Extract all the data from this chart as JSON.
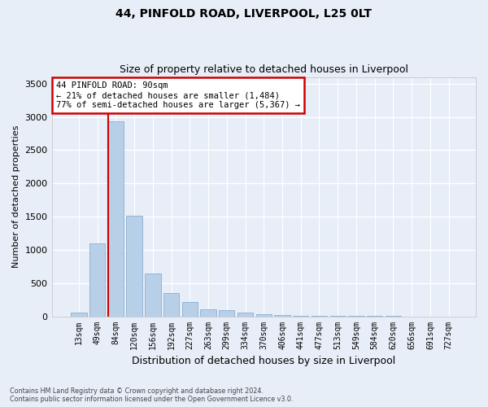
{
  "title1": "44, PINFOLD ROAD, LIVERPOOL, L25 0LT",
  "title2": "Size of property relative to detached houses in Liverpool",
  "xlabel": "Distribution of detached houses by size in Liverpool",
  "ylabel": "Number of detached properties",
  "categories": [
    "13sqm",
    "49sqm",
    "84sqm",
    "120sqm",
    "156sqm",
    "192sqm",
    "227sqm",
    "263sqm",
    "299sqm",
    "334sqm",
    "370sqm",
    "406sqm",
    "441sqm",
    "477sqm",
    "513sqm",
    "549sqm",
    "584sqm",
    "620sqm",
    "656sqm",
    "691sqm",
    "727sqm"
  ],
  "values": [
    50,
    1100,
    2930,
    1510,
    640,
    345,
    215,
    105,
    90,
    55,
    35,
    20,
    10,
    5,
    3,
    2,
    1,
    1,
    0,
    0,
    0
  ],
  "bar_color": "#b8cfe8",
  "bar_edge_color": "#8aafd4",
  "annotation_text_line1": "44 PINFOLD ROAD: 90sqm",
  "annotation_text_line2": "← 21% of detached houses are smaller (1,484)",
  "annotation_text_line3": "77% of semi-detached houses are larger (5,367) →",
  "annotation_box_color": "#ffffff",
  "annotation_edge_color": "#cc0000",
  "vertical_line_bar_index": 2,
  "ylim": [
    0,
    3600
  ],
  "yticks": [
    0,
    500,
    1000,
    1500,
    2000,
    2500,
    3000,
    3500
  ],
  "background_color": "#e8eef7",
  "grid_color": "#ffffff",
  "footer_line1": "Contains HM Land Registry data © Crown copyright and database right 2024.",
  "footer_line2": "Contains public sector information licensed under the Open Government Licence v3.0."
}
